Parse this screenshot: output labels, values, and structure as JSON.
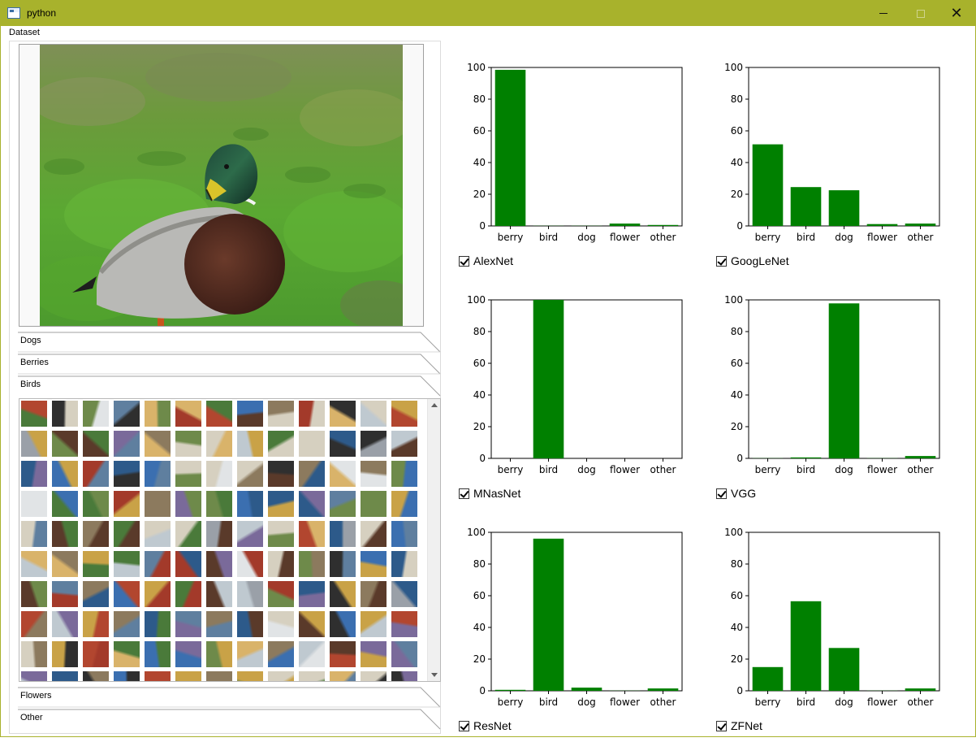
{
  "window": {
    "title": "python"
  },
  "menu": {
    "dataset": "Dataset"
  },
  "sections": {
    "dogs": "Dogs",
    "berries": "Berries",
    "birds": "Birds",
    "flowers": "Flowers",
    "other": "Other"
  },
  "preview": {
    "subject": "mallard duck on grass"
  },
  "colors": {
    "bar": "#008000",
    "titlebar": "#a8b22c"
  },
  "chart_data": [
    {
      "type": "bar",
      "model": "AlexNet",
      "categories": [
        "berry",
        "bird",
        "dog",
        "flower",
        "other"
      ],
      "values": [
        98.5,
        0.1,
        0.1,
        1.5,
        0.6
      ],
      "ylim": [
        0,
        100
      ],
      "yticks": [
        0,
        20,
        40,
        60,
        80,
        100
      ],
      "checked": true
    },
    {
      "type": "bar",
      "model": "GoogLeNet",
      "categories": [
        "berry",
        "bird",
        "dog",
        "flower",
        "other"
      ],
      "values": [
        51.5,
        24.5,
        22.5,
        1.2,
        1.5
      ],
      "ylim": [
        0,
        100
      ],
      "yticks": [
        0,
        20,
        40,
        60,
        80,
        100
      ],
      "checked": true
    },
    {
      "type": "bar",
      "model": "MNasNet",
      "categories": [
        "berry",
        "bird",
        "dog",
        "flower",
        "other"
      ],
      "values": [
        0.0,
        100.0,
        0.0,
        0.0,
        0.0
      ],
      "ylim": [
        0,
        100
      ],
      "yticks": [
        0,
        20,
        40,
        60,
        80,
        100
      ],
      "checked": true
    },
    {
      "type": "bar",
      "model": "VGG",
      "categories": [
        "berry",
        "bird",
        "dog",
        "flower",
        "other"
      ],
      "values": [
        0.1,
        0.6,
        97.8,
        0.1,
        1.5
      ],
      "ylim": [
        0,
        100
      ],
      "yticks": [
        0,
        20,
        40,
        60,
        80,
        100
      ],
      "checked": true
    },
    {
      "type": "bar",
      "model": "ResNet",
      "categories": [
        "berry",
        "bird",
        "dog",
        "flower",
        "other"
      ],
      "values": [
        0.6,
        96.0,
        2.0,
        0.1,
        1.5
      ],
      "ylim": [
        0,
        100
      ],
      "yticks": [
        0,
        20,
        40,
        60,
        80,
        100
      ],
      "checked": true
    },
    {
      "type": "bar",
      "model": "ZFNet",
      "categories": [
        "berry",
        "bird",
        "dog",
        "flower",
        "other"
      ],
      "values": [
        15.0,
        56.5,
        27.0,
        0.1,
        1.5
      ],
      "ylim": [
        0,
        100
      ],
      "yticks": [
        0,
        20,
        40,
        60,
        80,
        100
      ],
      "checked": true
    }
  ]
}
